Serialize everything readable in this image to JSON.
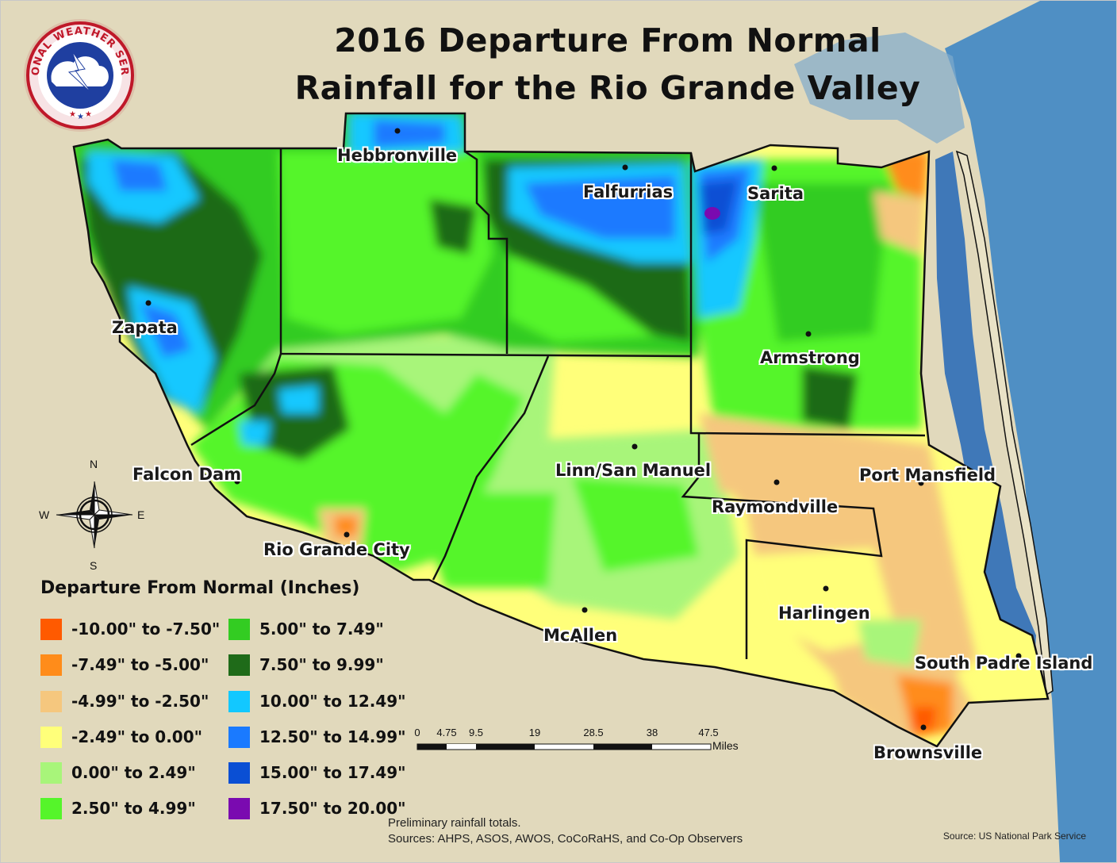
{
  "title": {
    "line1": "2016 Departure From Normal",
    "line2": "Rainfall for the Rio Grande Valley"
  },
  "logo": {
    "text": "NATIONAL WEATHER SERVICE",
    "icon": "nws-logo-icon"
  },
  "cities": [
    {
      "name": "Hebbronville"
    },
    {
      "name": "Falfurrias"
    },
    {
      "name": "Sarita"
    },
    {
      "name": "Zapata"
    },
    {
      "name": "Armstrong"
    },
    {
      "name": "Falcon Dam"
    },
    {
      "name": "Linn/San Manuel"
    },
    {
      "name": "Port Mansfield"
    },
    {
      "name": "Raymondville"
    },
    {
      "name": "Rio Grande City"
    },
    {
      "name": "Harlingen"
    },
    {
      "name": "McAllen"
    },
    {
      "name": "South Padre Island"
    },
    {
      "name": "Brownsville"
    }
  ],
  "legend": {
    "title": "Departure From Normal (Inches)",
    "items": [
      {
        "label": "-10.00\" to -7.50\"",
        "color": "#ff5a00"
      },
      {
        "label": "-7.49\" to -5.00\"",
        "color": "#ff8c1a"
      },
      {
        "label": "-4.99\" to -2.50\"",
        "color": "#f5c77e"
      },
      {
        "label": "-2.49\" to 0.00\"",
        "color": "#ffff7a"
      },
      {
        "label": "0.00\" to 2.49\"",
        "color": "#a8f57a"
      },
      {
        "label": "2.50\" to 4.99\"",
        "color": "#55f52a"
      },
      {
        "label": "5.00\" to 7.49\"",
        "color": "#33cc22"
      },
      {
        "label": "7.50\" to 9.99\"",
        "color": "#1f6b19"
      },
      {
        "label": "10.00\" to 12.49\"",
        "color": "#12c8ff"
      },
      {
        "label": "12.50\" to 14.99\"",
        "color": "#1a7aff"
      },
      {
        "label": "15.00\" to 17.49\"",
        "color": "#0a4fd4"
      },
      {
        "label": "17.50\" to 20.00\"",
        "color": "#7a0ab0"
      }
    ]
  },
  "compass": {
    "n": "N",
    "s": "S",
    "e": "E",
    "w": "W"
  },
  "scale_bar": {
    "ticks": [
      "0",
      "4.75",
      "9.5",
      "19",
      "28.5",
      "38",
      "47.5"
    ],
    "unit": "Miles"
  },
  "notes": {
    "line1": "Preliminary rainfall totals.",
    "line2": "Sources: AHPS, ASOS, AWOS, CoCoRaHS, and Co-Op Observers"
  },
  "credit": "Source: US National Park Service",
  "colors": {
    "land_background": "#e4dcc0",
    "water": "#3f86c6",
    "county_border": "#111111"
  }
}
